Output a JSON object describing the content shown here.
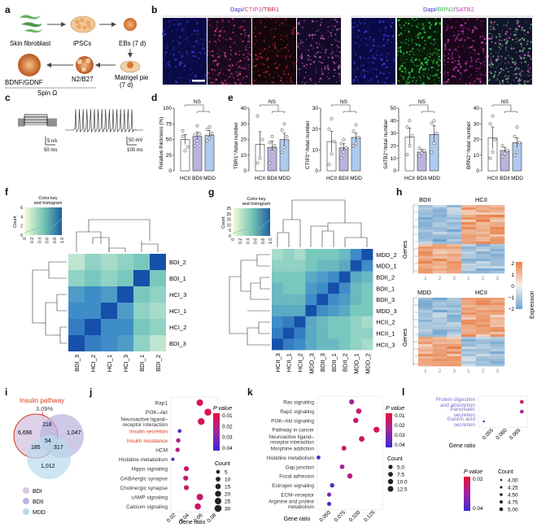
{
  "panels": {
    "a": "a",
    "b": "b",
    "c": "c",
    "d": "d",
    "e": "e",
    "f": "f",
    "g": "g",
    "h": "h",
    "i": "i",
    "j": "j",
    "k": "k",
    "l": "l"
  },
  "a": {
    "skin": "Skin fibroblast",
    "ipscs": "iPSCs",
    "ebs": "EBs (7 d)",
    "matrigel1": "Matrigel pie",
    "matrigel2": "(7 d)",
    "n2b27": "N2/B27",
    "bdnf": "BDNF/GDNF",
    "spin": "Spin Ω"
  },
  "b": {
    "title_left": [
      "Dapi/",
      "CTIP2",
      "/",
      "TBR1"
    ],
    "title_right": [
      "Dapi/",
      "BRN2",
      "/",
      "SATB2"
    ],
    "colors": {
      "dapi": "#3a3acd",
      "ctip2": "#e0458c",
      "tbr1": "#c0243a",
      "brn2": "#39b54a",
      "satb2": "#c93fb5"
    }
  },
  "c": {
    "scale1a": "5 nA",
    "scale1b": "50 ms",
    "scale2a": "50 mV",
    "scale2b": "100 ms"
  },
  "groups": [
    "HCII",
    "BDII",
    "MDD"
  ],
  "group_colors": [
    "#ffffff",
    "#b8b4de",
    "#aecbef"
  ],
  "d": {
    "ylabel": "Relative thickness (%)",
    "ticks": [
      "0",
      "25",
      "50",
      "75",
      "100"
    ],
    "ns": "NS"
  },
  "e": {
    "ns": "NS",
    "charts": [
      {
        "ylabel": "TBR1⁺/total number",
        "ticks": [
          "0",
          "10",
          "20",
          "30",
          "40"
        ]
      },
      {
        "ylabel": "CTIP2⁺/total number",
        "ticks": [
          "0",
          "10",
          "20",
          "30"
        ]
      },
      {
        "ylabel": "SATB2⁺/total number",
        "ticks": [
          "0",
          "10",
          "20",
          "30",
          "40",
          "50"
        ]
      },
      {
        "ylabel": "BRN2⁺/total number",
        "ticks": [
          "0",
          "10",
          "20",
          "30",
          "40"
        ]
      }
    ]
  },
  "colorkey": {
    "title1": "Color key",
    "title2": "and histogram",
    "ylabel": "Count",
    "f_yticks": [
      "0",
      "2",
      "4",
      "6"
    ],
    "g_yticks": [
      "0",
      "5",
      "10",
      "15",
      "20",
      "25"
    ],
    "xticks": [
      "0",
      "0.2",
      "0.4",
      "0.6",
      "0.8",
      "1.0"
    ]
  },
  "f": {
    "rows": [
      "BDI_2",
      "BDI_1",
      "HCI_3",
      "HCI_1",
      "HCI_2",
      "BDI_3"
    ],
    "cols": [
      "BDI_3",
      "HCI_2",
      "HCI_1",
      "HCI_3",
      "BDI_1",
      "BDI_2"
    ]
  },
  "g": {
    "rows": [
      "MDD_2",
      "MDD_1",
      "BDII_2",
      "BDII_1",
      "BDII_3",
      "MDD_3",
      "HCII_2",
      "HCII_1",
      "HCII_3"
    ],
    "cols": [
      "HCII_3",
      "HCII_1",
      "HCII_2",
      "MDD_3",
      "BDII_3",
      "BDII_1",
      "BDII_2",
      "MDD_1",
      "MDD_2"
    ]
  },
  "h": {
    "top_left": "BDII",
    "top_right": "HCII",
    "bot_left": "MDD",
    "bot_right": "HCII",
    "ylabel": "Genes",
    "legend_title": "Expression",
    "legend_ticks": [
      "2",
      "1",
      "0",
      "−1",
      "−2"
    ],
    "col_ticks": [
      "1",
      "2",
      "3",
      "1",
      "2",
      "3"
    ]
  },
  "i": {
    "title": "Insulin pathway",
    "pct": "3.09%",
    "n1": "6,696",
    "n2": "218",
    "n3": "1,047",
    "n4": "185",
    "n5": "54",
    "n6": "317",
    "n7": "1,012",
    "legend": [
      "BDI",
      "BDII",
      "MDD"
    ],
    "colors": [
      "#d9c9e6",
      "#b8b4de",
      "#b8dcee"
    ]
  },
  "j": {
    "terms": [
      "Rap1",
      "PI3K–Akt",
      "Neuroactive ligand–\nreceptor interaction",
      "Insulin secretion",
      "Insulin resistance",
      "HCM",
      "Histidine metabolism",
      "Hippo signaling",
      "GABAergic synapse",
      "Cholinergic synapse",
      "cAMP signaling",
      "Calcium signaling"
    ],
    "red_terms": [
      3,
      4
    ],
    "xticks": [
      "0.02",
      "0.04",
      "0.06",
      "0.08"
    ],
    "xlabel": "Gene ratio",
    "ptitle": "P value",
    "pticks": [
      "0.01",
      "0.02",
      "0.03",
      "0.04"
    ],
    "ctitle": "Count",
    "cticks": [
      "5",
      "10",
      "15",
      "20",
      "25",
      "30"
    ]
  },
  "k": {
    "terms": [
      "Ras signaling",
      "Rap1 signaling",
      "PI3K–Akt signaling",
      "Pathway in cancer",
      "Neuroactive ligand–\nreceptor interaction",
      "Morphine addiction",
      "Histidine metabolism",
      "Gap junction",
      "Focal adhesion",
      "Estrogen signaling",
      "ECM–receptor",
      "Arginine and proline\nmetabolism"
    ],
    "xticks": [
      "0.050",
      "0.075",
      "0.100",
      "0.125"
    ],
    "xlabel": "Gene ratio",
    "ptitle": "P value",
    "pticks": [
      "0.01",
      "0.02",
      "0.03",
      "0.04"
    ],
    "ctitle": "Count",
    "cticks": [
      "5.0",
      "7.5",
      "10.0",
      "12.5"
    ]
  },
  "l": {
    "terms": [
      "Protein digestion\nand absorption",
      "Pancreatic\nsecretion",
      "Gastric acid\nsecretion"
    ],
    "xticks": [
      "0.055",
      "0.060",
      "0.065"
    ],
    "xlabel": "Gene ratio",
    "ptitle": "P value",
    "pticks": [
      "0.02",
      "0.04"
    ],
    "ctitle": "Count",
    "cticks": [
      "4.00",
      "4.25",
      "4.50",
      "4.75",
      "5.00"
    ]
  },
  "chart_data": [
    {
      "type": "bar",
      "id": "d",
      "categories": [
        "HCII",
        "BDII",
        "MDD"
      ],
      "values": [
        50,
        55,
        57
      ],
      "errors": [
        8,
        7,
        7
      ],
      "points": [
        [
          64,
          32,
          38,
          55
        ],
        [
          40,
          48,
          59,
          57,
          72
        ],
        [
          48,
          52,
          60,
          66,
          70
        ]
      ],
      "ylabel": "Relative thickness (%)",
      "ylim": [
        0,
        100
      ]
    },
    {
      "type": "bar",
      "id": "e1",
      "categories": [
        "HCII",
        "BDII",
        "MDD"
      ],
      "values": [
        17,
        15,
        20
      ],
      "errors": [
        8,
        4,
        4
      ],
      "points": [
        [
          5,
          8,
          20,
          35
        ],
        [
          5,
          12,
          16,
          18,
          22
        ],
        [
          12,
          15,
          22,
          26,
          30
        ]
      ],
      "ylabel": "TBR1⁺/total number",
      "ylim": [
        0,
        40
      ]
    },
    {
      "type": "bar",
      "id": "e2",
      "categories": [
        "HCII",
        "BDII",
        "MDD"
      ],
      "values": [
        14,
        11,
        16
      ],
      "errors": [
        5,
        2,
        2
      ],
      "points": [
        [
          3,
          8,
          14,
          20,
          25
        ],
        [
          6,
          9,
          11,
          13,
          15
        ],
        [
          12,
          13,
          16,
          19,
          22
        ]
      ],
      "ylabel": "CTIP2⁺/total number",
      "ylim": [
        0,
        30
      ]
    },
    {
      "type": "bar",
      "id": "e3",
      "categories": [
        "HCII",
        "BDII",
        "MDD"
      ],
      "values": [
        27,
        15,
        29
      ],
      "errors": [
        7,
        2,
        7
      ],
      "points": [
        [
          13,
          20,
          28,
          35,
          40
        ],
        [
          12,
          14,
          16,
          18
        ],
        [
          15,
          22,
          30,
          38,
          40
        ]
      ],
      "ylabel": "SATB2⁺/total number",
      "ylim": [
        0,
        50
      ]
    },
    {
      "type": "bar",
      "id": "e4",
      "categories": [
        "HCII",
        "BDII",
        "MDD"
      ],
      "values": [
        21,
        13,
        18
      ],
      "errors": [
        7,
        2,
        3
      ],
      "points": [
        [
          8,
          12,
          20,
          30,
          35
        ],
        [
          9,
          11,
          13,
          16
        ],
        [
          10,
          12,
          18,
          22,
          28
        ]
      ],
      "ylabel": "BRN2⁺/total number",
      "ylim": [
        0,
        40
      ]
    },
    {
      "type": "heatmap",
      "id": "f",
      "rows": [
        "BDI_2",
        "BDI_1",
        "HCI_3",
        "HCI_1",
        "HCI_2",
        "BDI_3"
      ],
      "cols": [
        "BDI_3",
        "HCI_2",
        "HCI_1",
        "HCI_3",
        "BDI_1",
        "BDI_2"
      ],
      "values": [
        [
          0.45,
          0.55,
          0.5,
          0.55,
          0.6,
          1.0
        ],
        [
          0.55,
          0.6,
          0.55,
          0.6,
          1.0,
          0.6
        ],
        [
          0.75,
          0.8,
          0.75,
          1.0,
          0.6,
          0.55
        ],
        [
          0.8,
          0.8,
          1.0,
          0.75,
          0.55,
          0.5
        ],
        [
          0.85,
          1.0,
          0.8,
          0.8,
          0.6,
          0.55
        ],
        [
          1.0,
          0.85,
          0.8,
          0.75,
          0.55,
          0.45
        ]
      ]
    },
    {
      "type": "heatmap",
      "id": "g",
      "rows": [
        "MDD_2",
        "MDD_1",
        "BDII_2",
        "BDII_1",
        "BDII_3",
        "MDD_3",
        "HCII_2",
        "HCII_1",
        "HCII_3"
      ],
      "cols": [
        "HCII_3",
        "HCII_1",
        "HCII_2",
        "MDD_3",
        "BDII_3",
        "BDII_1",
        "BDII_2",
        "MDD_1",
        "MDD_2"
      ],
      "values": [
        [
          0.5,
          0.55,
          0.5,
          0.6,
          0.6,
          0.6,
          0.65,
          0.8,
          1.0
        ],
        [
          0.55,
          0.55,
          0.55,
          0.6,
          0.65,
          0.65,
          0.7,
          1.0,
          0.8
        ],
        [
          0.6,
          0.6,
          0.6,
          0.7,
          0.75,
          0.8,
          1.0,
          0.7,
          0.65
        ],
        [
          0.65,
          0.6,
          0.6,
          0.75,
          0.8,
          1.0,
          0.8,
          0.65,
          0.6
        ],
        [
          0.65,
          0.65,
          0.65,
          0.8,
          1.0,
          0.8,
          0.75,
          0.65,
          0.6
        ],
        [
          0.7,
          0.7,
          0.7,
          1.0,
          0.8,
          0.75,
          0.7,
          0.6,
          0.6
        ],
        [
          0.8,
          0.85,
          1.0,
          0.7,
          0.65,
          0.6,
          0.6,
          0.55,
          0.5
        ],
        [
          0.85,
          1.0,
          0.85,
          0.7,
          0.65,
          0.6,
          0.6,
          0.55,
          0.55
        ],
        [
          1.0,
          0.85,
          0.8,
          0.7,
          0.65,
          0.65,
          0.6,
          0.55,
          0.5
        ]
      ]
    },
    {
      "type": "scatter",
      "id": "j",
      "terms": [
        "Rap1",
        "PI3K–Akt",
        "Neuroactive ligand–receptor interaction",
        "Insulin secretion",
        "Insulin resistance",
        "HCM",
        "Histidine metabolism",
        "Hippo signaling",
        "GABAergic synapse",
        "Cholinergic synapse",
        "cAMP signaling",
        "Calcium signaling"
      ],
      "gene_ratio": [
        0.058,
        0.07,
        0.06,
        0.028,
        0.026,
        0.025,
        0.018,
        0.038,
        0.037,
        0.038,
        0.058,
        0.055
      ],
      "p_value": [
        0.005,
        0.005,
        0.008,
        0.04,
        0.015,
        0.015,
        0.04,
        0.012,
        0.012,
        0.01,
        0.01,
        0.01
      ],
      "count": [
        25,
        30,
        28,
        5,
        8,
        8,
        3,
        12,
        12,
        12,
        25,
        22
      ],
      "xlim": [
        0.015,
        0.085
      ]
    },
    {
      "type": "scatter",
      "id": "k",
      "terms": [
        "Ras signaling",
        "Rap1 signaling",
        "PI3K–Akt signaling",
        "Pathway in cancer",
        "Neuroactive ligand–receptor interaction",
        "Morphine addiction",
        "Histidine metabolism",
        "Gap junction",
        "Focal adhesion",
        "Estrogen signaling",
        "ECM–receptor",
        "Arginine and proline metabolism"
      ],
      "gene_ratio": [
        0.088,
        0.1,
        0.095,
        0.13,
        0.105,
        0.075,
        0.032,
        0.072,
        0.085,
        0.055,
        0.05,
        0.05
      ],
      "p_value": [
        0.02,
        0.01,
        0.01,
        0.005,
        0.008,
        0.01,
        0.04,
        0.02,
        0.015,
        0.04,
        0.03,
        0.04
      ],
      "count": [
        9,
        11,
        10,
        14,
        12,
        8,
        4,
        7,
        10,
        6,
        5,
        5
      ],
      "xlim": [
        0.03,
        0.14
      ]
    },
    {
      "type": "scatter",
      "id": "l",
      "terms": [
        "Protein digestion and absorption",
        "Pancreatic secretion",
        "Gastric acid secretion"
      ],
      "gene_ratio": [
        0.066,
        0.066,
        0.052
      ],
      "p_value": [
        0.01,
        0.02,
        0.04
      ],
      "count": [
        5,
        5,
        4
      ],
      "xlim": [
        0.05,
        0.068
      ]
    }
  ]
}
